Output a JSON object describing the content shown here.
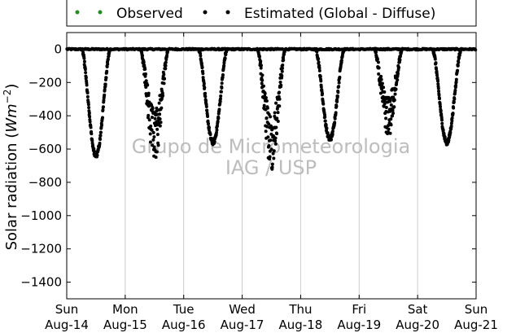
{
  "chart_data": {
    "type": "scatter",
    "title": "",
    "ylabel": "Solar radiation",
    "ylabel_unit_prefix": "W",
    "ylabel_unit_base": "m",
    "ylabel_unit_exp": "−2",
    "ylim": [
      -1500,
      100
    ],
    "yticks": [
      0,
      -200,
      -400,
      -600,
      -800,
      -1000,
      -1200,
      -1400
    ],
    "xlim": [
      0,
      7
    ],
    "xticks": [
      {
        "x": 0,
        "day": "Sun",
        "date": "Aug-14"
      },
      {
        "x": 1,
        "day": "Mon",
        "date": "Aug-15"
      },
      {
        "x": 2,
        "day": "Tue",
        "date": "Aug-16"
      },
      {
        "x": 3,
        "day": "Wed",
        "date": "Aug-17"
      },
      {
        "x": 4,
        "day": "Thu",
        "date": "Aug-18"
      },
      {
        "x": 5,
        "day": "Fri",
        "date": "Aug-19"
      },
      {
        "x": 6,
        "day": "Sat",
        "date": "Aug-20"
      },
      {
        "x": 7,
        "day": "Sun",
        "date": "Aug-21"
      }
    ],
    "grid": "vertical",
    "legend_position": "top-center-outside",
    "series": [
      {
        "name": "Observed",
        "color": "#228b22",
        "values": []
      },
      {
        "name": "Estimated (Global - Diffuse)",
        "color": "#000000",
        "daily_minima": [
          {
            "center": 0.5,
            "min": -640
          },
          {
            "center": 1.5,
            "min": -660
          },
          {
            "center": 2.5,
            "min": -560
          },
          {
            "center": 3.5,
            "min": -700
          },
          {
            "center": 4.5,
            "min": -540
          },
          {
            "center": 5.5,
            "min": -500
          },
          {
            "center": 6.5,
            "min": -560
          }
        ]
      }
    ],
    "annotations": [
      "Grupo de Micrometeorologia",
      "IAG / USP"
    ]
  }
}
